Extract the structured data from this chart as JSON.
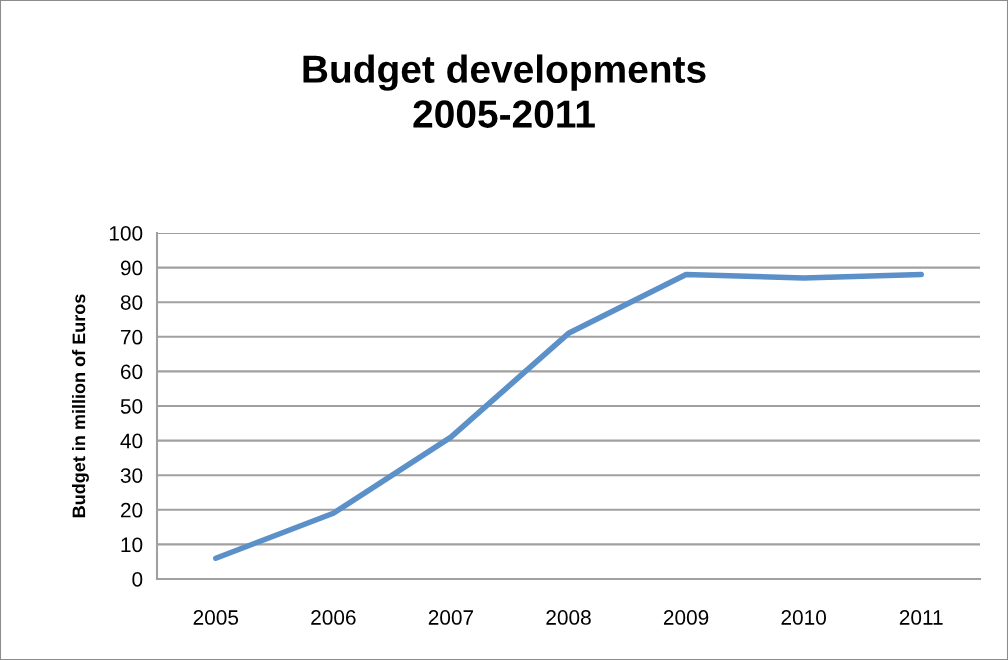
{
  "chart_data": {
    "type": "line",
    "title": "Budget developments\n2005-2011",
    "ylabel": "Budget in million of Euros",
    "categories": [
      "2005",
      "2006",
      "2007",
      "2008",
      "2009",
      "2010",
      "2011"
    ],
    "series": [
      {
        "color": "#5b91c8",
        "values": [
          6,
          19,
          41,
          71,
          88,
          87,
          88
        ]
      }
    ],
    "ylim": [
      0,
      100
    ],
    "yticks": [
      0,
      10,
      20,
      30,
      40,
      50,
      60,
      70,
      80,
      90,
      100
    ],
    "grid": "y",
    "legend": false,
    "marker": "none",
    "line_style": "solid"
  }
}
